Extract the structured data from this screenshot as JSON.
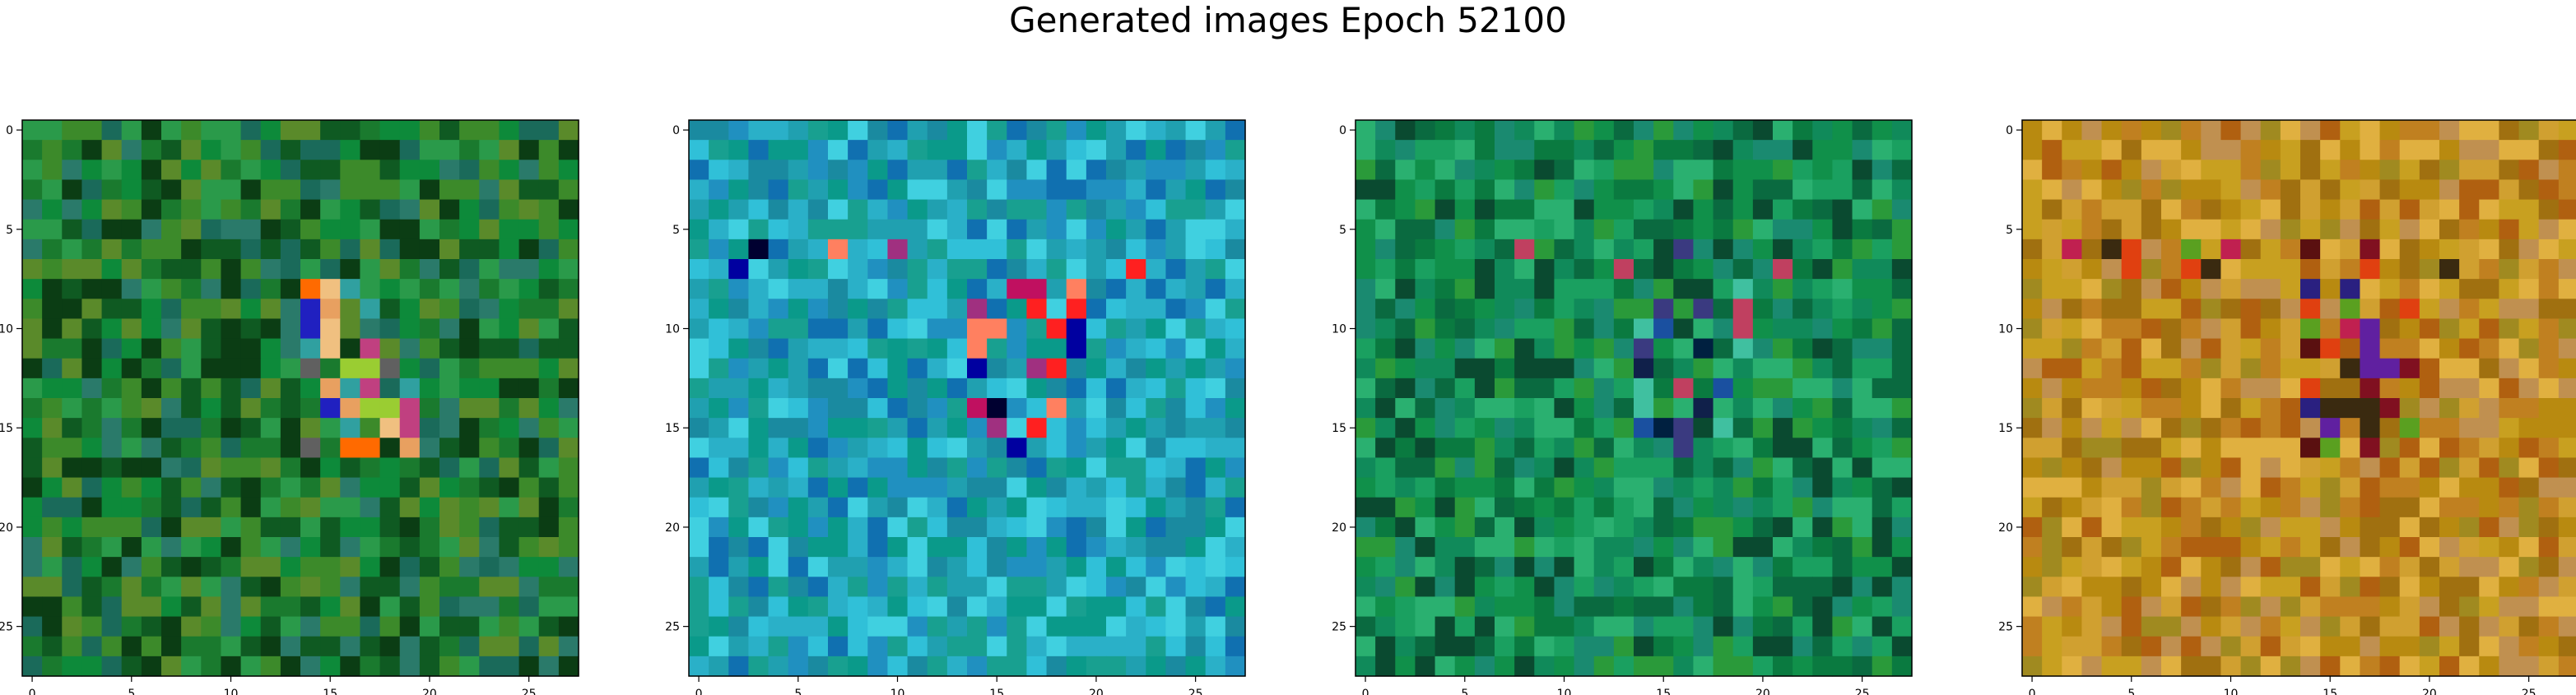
{
  "figure": {
    "title": "Generated images Epoch 52100"
  },
  "chart_data": [
    {
      "type": "heatmap",
      "title": "",
      "grid_size": [
        28,
        28
      ],
      "x_ticks": [
        0,
        5,
        10,
        15,
        20,
        25
      ],
      "y_ticks": [
        0,
        5,
        10,
        15,
        20,
        25
      ],
      "xlim": [
        -0.5,
        27.5
      ],
      "ylim": [
        27.5,
        -0.5
      ],
      "palette": [
        "#0b3d14",
        "#0f5a22",
        "#1a7a2e",
        "#0d8a3a",
        "#2a9a4a",
        "#3c8a2a",
        "#5a8a2a",
        "#1a6a5a",
        "#2a7a6a"
      ],
      "hotspot_palette": [
        "#9acd32",
        "#e8a060",
        "#f0c080",
        "#ff6a00",
        "#c04080",
        "#2020c0",
        "#606060",
        "#30a0a0"
      ],
      "seed": 11
    },
    {
      "type": "heatmap",
      "title": "",
      "grid_size": [
        28,
        28
      ],
      "x_ticks": [
        0,
        5,
        10,
        15,
        20,
        25
      ],
      "y_ticks": [
        0,
        5,
        10,
        15,
        20,
        25
      ],
      "xlim": [
        -0.5,
        27.5
      ],
      "ylim": [
        27.5,
        -0.5
      ],
      "palette": [
        "#1a8aa0",
        "#20a0b0",
        "#2ab0c8",
        "#30c0d8",
        "#18a090",
        "#2090c0",
        "#1070b0",
        "#40d0e0",
        "#0a9a8a"
      ],
      "hotspot_palette": [
        "#000030",
        "#0000a0",
        "#ff2020",
        "#c01060",
        "#ff8060",
        "#c0c060",
        "#a03080"
      ],
      "seed": 23
    },
    {
      "type": "heatmap",
      "title": "",
      "grid_size": [
        28,
        28
      ],
      "x_ticks": [
        0,
        5,
        10,
        15,
        20,
        25
      ],
      "y_ticks": [
        0,
        5,
        10,
        15,
        20,
        25
      ],
      "xlim": [
        -0.5,
        27.5
      ],
      "ylim": [
        27.5,
        -0.5
      ],
      "palette": [
        "#0a4a30",
        "#0a7a40",
        "#10904a",
        "#1aa060",
        "#2ab070",
        "#108a5a",
        "#0a6a40",
        "#2a9a3a",
        "#1a8a70"
      ],
      "hotspot_palette": [
        "#002040",
        "#10204a",
        "#c04060",
        "#40c0a0",
        "#e0a060",
        "#1a50a0",
        "#3a3a80"
      ],
      "seed": 37
    },
    {
      "type": "heatmap",
      "title": "",
      "grid_size": [
        28,
        28
      ],
      "x_ticks": [
        0,
        5,
        10,
        15,
        20,
        25
      ],
      "y_ticks": [
        0,
        5,
        10,
        15,
        20,
        25
      ],
      "xlim": [
        -0.5,
        27.5
      ],
      "ylim": [
        27.5,
        -0.5
      ],
      "palette": [
        "#b88a10",
        "#c8a020",
        "#a07010",
        "#d0a030",
        "#c08020",
        "#b06010",
        "#a08a20",
        "#e0b040",
        "#c09050"
      ],
      "hotspot_palette": [
        "#5a1010",
        "#801020",
        "#2a2080",
        "#6020a0",
        "#e04010",
        "#3a2a10",
        "#c02050",
        "#5aa020"
      ],
      "seed": 53
    }
  ]
}
